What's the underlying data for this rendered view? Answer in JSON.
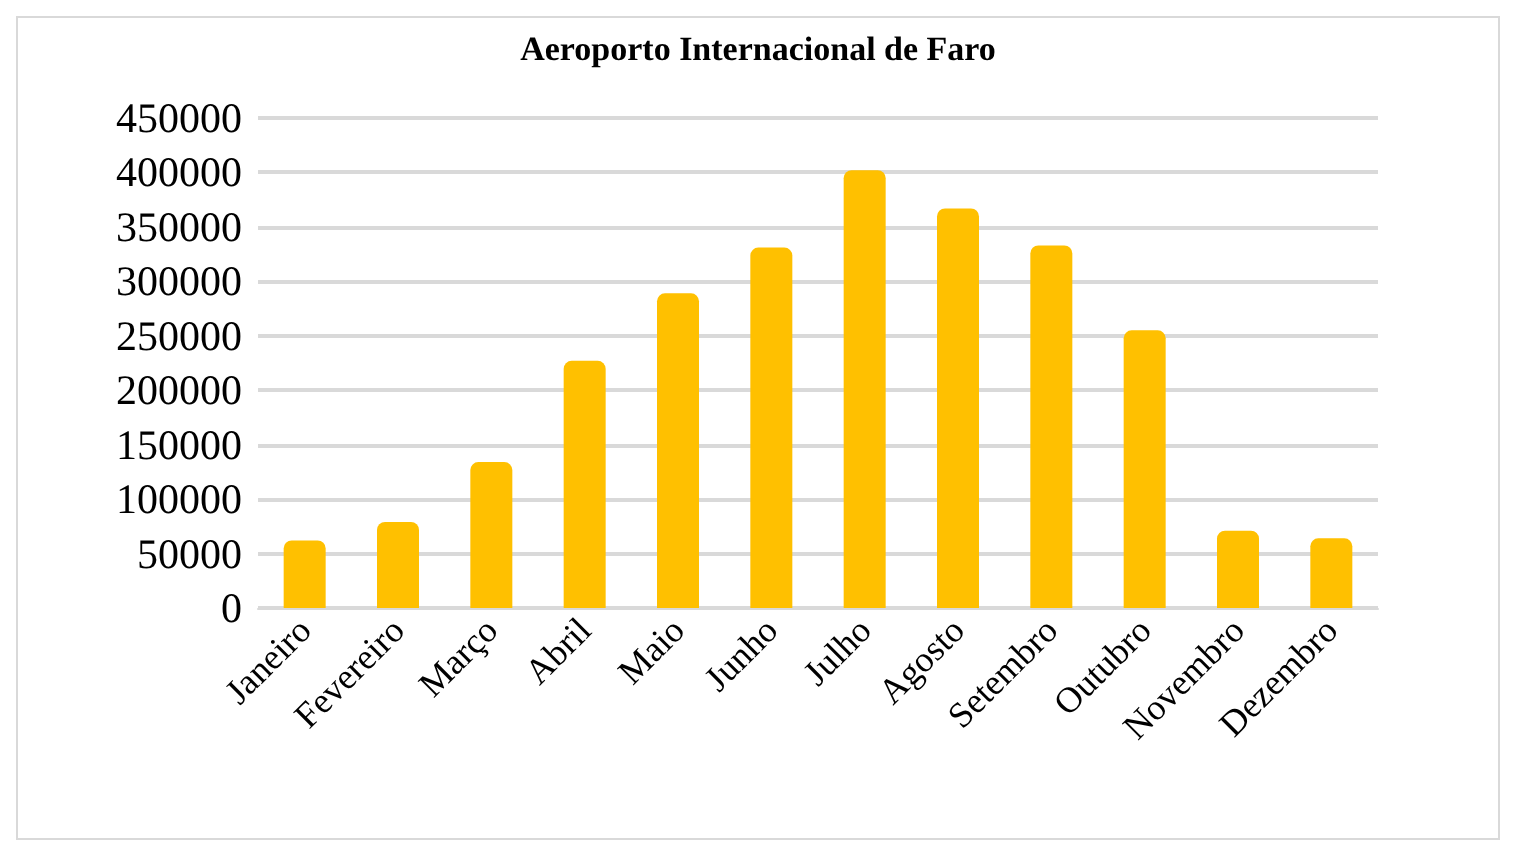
{
  "chart_data": {
    "type": "bar",
    "title": "Aeroporto Internacional de Faro",
    "categories": [
      "Janeiro",
      "Fevereiro",
      "Março",
      "Abril",
      "Maio",
      "Junho",
      "Julho",
      "Agosto",
      "Setembro",
      "Outubro",
      "Novembro",
      "Dezembro"
    ],
    "values": [
      62000,
      79000,
      134000,
      227000,
      289000,
      331000,
      402000,
      367000,
      333000,
      255000,
      71000,
      64000
    ],
    "color": "#ffc000",
    "ylim": [
      0,
      450000
    ],
    "yticks": [
      0,
      50000,
      100000,
      150000,
      200000,
      250000,
      300000,
      350000,
      400000,
      450000
    ],
    "grid": true
  }
}
